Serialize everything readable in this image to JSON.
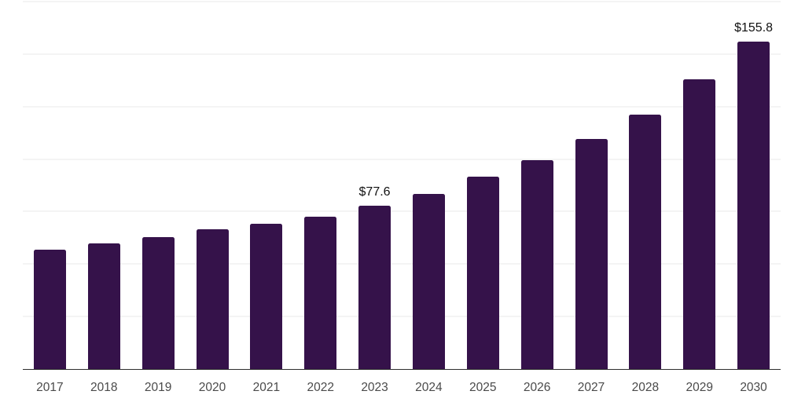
{
  "chart_data": {
    "type": "bar",
    "title": "",
    "xlabel": "",
    "ylabel": "",
    "categories": [
      "2017",
      "2018",
      "2019",
      "2020",
      "2021",
      "2022",
      "2023",
      "2024",
      "2025",
      "2026",
      "2027",
      "2028",
      "2029",
      "2030"
    ],
    "values": [
      57.0,
      60.0,
      63.0,
      66.5,
      69.0,
      72.5,
      77.6,
      83.4,
      91.5,
      99.5,
      109.5,
      121.0,
      138.0,
      155.8
    ],
    "data_labels": [
      "",
      "",
      "",
      "",
      "",
      "",
      "$77.6",
      "",
      "",
      "",
      "",
      "",
      "",
      "$155.8"
    ],
    "ylim": [
      0,
      175
    ],
    "gridline_step": 25,
    "grid": true,
    "legend": "none",
    "colors": {
      "bar": "#35124a",
      "axis_line": "#2e2e2e",
      "gridline": "#f4f4f4",
      "tick_label": "#4a4a4a",
      "data_label": "#111111"
    }
  }
}
